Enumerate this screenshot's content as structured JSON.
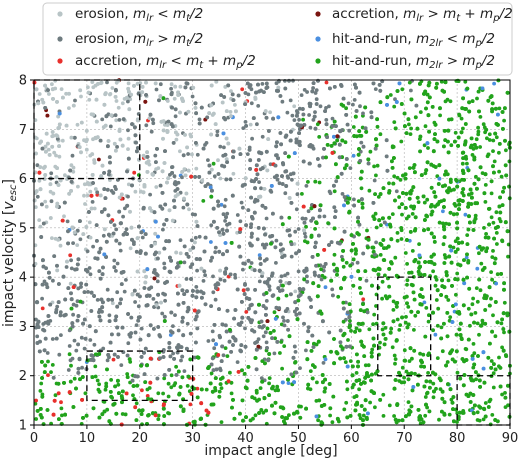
{
  "chart_data": {
    "type": "scatter",
    "xlabel": "impact angle [deg]",
    "ylabel_main": "impact velocity [",
    "ylabel_sym": "v",
    "ylabel_sub": "esc",
    "ylabel_end": "]",
    "xlim": [
      0,
      90
    ],
    "ylim": [
      1,
      8
    ],
    "xticks": [
      0,
      10,
      20,
      30,
      40,
      50,
      60,
      70,
      80,
      90
    ],
    "yticks": [
      1,
      2,
      3,
      4,
      5,
      6,
      7,
      8
    ],
    "grid": true,
    "legend_placement": "top",
    "series": [
      {
        "name": "erosion, m_lr < m_t/2",
        "label_main": "erosion, ",
        "label_math": "m",
        "label_sub": "lr",
        "label_rest": " < m",
        "label_sub2": "t",
        "label_tail": "/2",
        "color": "#b8c4c6"
      },
      {
        "name": "erosion, m_lr > m_t/2",
        "label_main": "erosion, ",
        "label_math": "m",
        "label_sub": "lr",
        "label_rest": " > m",
        "label_sub2": "t",
        "label_tail": "/2",
        "color": "#6e7b7f"
      },
      {
        "name": "accretion, m_lr < m_t + m_p/2",
        "label_main": "accretion, ",
        "label_math": "m",
        "label_sub": "lr",
        "label_rest": " < m",
        "label_sub2": "t",
        "label_tail": " + m",
        "label_sub3": "p",
        "label_tail2": "/2",
        "color": "#e8302c"
      },
      {
        "name": "accretion, m_lr > m_t + m_p/2",
        "label_main": "accretion, ",
        "label_math": "m",
        "label_sub": "lr",
        "label_rest": " > m",
        "label_sub2": "t",
        "label_tail": " + m",
        "label_sub3": "p",
        "label_tail2": "/2",
        "color": "#7a1410"
      },
      {
        "name": "hit-and-run, m_2lr < m_p/2",
        "label_main": "hit-and-run, ",
        "label_math": "m",
        "label_sub": "2lr",
        "label_rest": " < m",
        "label_sub2": "p",
        "label_tail": "/2",
        "color": "#4a8fe0"
      },
      {
        "name": "hit-and-run, m_2lr > m_p/2",
        "label_main": "hit-and-run, ",
        "label_math": "m",
        "label_sub": "2lr",
        "label_rest": " > m",
        "label_sub2": "p",
        "label_tail": "/2",
        "color": "#22a31c"
      }
    ],
    "dashed_regions": [
      {
        "x": [
          0,
          20
        ],
        "y": [
          6,
          8
        ]
      },
      {
        "x": [
          10,
          30
        ],
        "y": [
          1.5,
          2.5
        ]
      },
      {
        "x": [
          65,
          75
        ],
        "y": [
          2,
          4
        ]
      },
      {
        "x": [
          80,
          90
        ],
        "y": [
          1,
          2
        ]
      }
    ],
    "point_count_approx": 6000
  }
}
